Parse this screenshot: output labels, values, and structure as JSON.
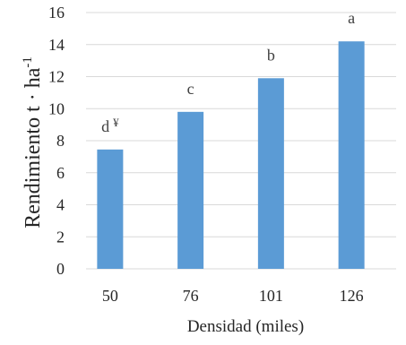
{
  "colors": {
    "bar": "#5B9BD5",
    "grid": "#D9D9D9",
    "text": "#262626"
  },
  "chart_data": {
    "type": "bar",
    "categories": [
      "50",
      "76",
      "101",
      "126"
    ],
    "values": [
      7.45,
      9.8,
      11.9,
      14.2
    ],
    "annotations": [
      "d",
      "c",
      "b",
      "a"
    ],
    "footnote_marker": "¥",
    "xlabel": "Densidad (miles)",
    "ylabel": {
      "main": "Rendimiento t · ha",
      "superscript": "-1"
    },
    "ylim": [
      0,
      16
    ],
    "yticks": [
      "0",
      "2",
      "4",
      "6",
      "8",
      "10",
      "12",
      "14",
      "16"
    ],
    "grid": true
  }
}
